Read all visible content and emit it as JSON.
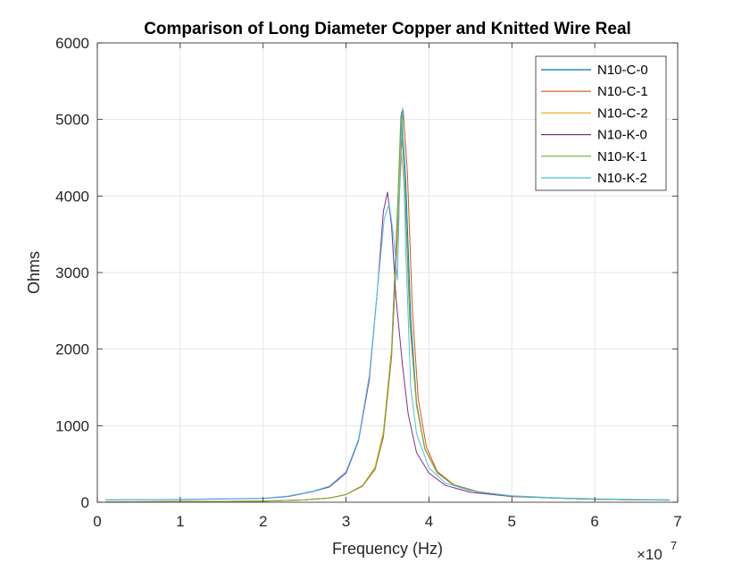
{
  "chart_data": {
    "type": "line",
    "title": "Comparison of Long Diameter Copper and Knitted Wire Real",
    "xlabel": "Frequency (Hz)",
    "ylabel": "Ohms",
    "x_exponent_label": "×10",
    "x_exponent_power": "7",
    "xlim": [
      0,
      7
    ],
    "ylim": [
      0,
      6000
    ],
    "x_ticks": [
      "0",
      "1",
      "2",
      "3",
      "4",
      "5",
      "6",
      "7"
    ],
    "y_ticks": [
      "0",
      "1000",
      "2000",
      "3000",
      "4000",
      "5000",
      "6000"
    ],
    "grid": true,
    "legend_position": "top-right",
    "series": [
      {
        "name": "N10-C-0",
        "color": "#0072BD",
        "x": [
          0.1,
          1,
          2,
          2.5,
          2.8,
          3,
          3.2,
          3.35,
          3.45,
          3.55,
          3.62,
          3.67,
          3.72,
          3.78,
          3.85,
          3.95,
          4.1,
          4.3,
          4.6,
          5,
          5.5,
          6,
          6.5,
          6.9
        ],
        "y": [
          5,
          8,
          15,
          30,
          55,
          100,
          220,
          450,
          900,
          2000,
          3800,
          5100,
          4200,
          2400,
          1300,
          700,
          380,
          220,
          130,
          80,
          55,
          40,
          30,
          28
        ]
      },
      {
        "name": "N10-C-1",
        "color": "#D95319",
        "x": [
          0.1,
          1,
          2,
          2.5,
          2.8,
          3,
          3.2,
          3.35,
          3.45,
          3.55,
          3.63,
          3.69,
          3.74,
          3.8,
          3.87,
          3.97,
          4.1,
          4.3,
          4.6,
          5,
          5.5,
          6,
          6.5,
          6.9
        ],
        "y": [
          5,
          8,
          15,
          30,
          55,
          100,
          210,
          430,
          850,
          1900,
          3700,
          5120,
          4300,
          2500,
          1350,
          720,
          400,
          230,
          135,
          82,
          56,
          41,
          31,
          29
        ]
      },
      {
        "name": "N10-C-2",
        "color": "#EDB120",
        "x": [
          0.1,
          1,
          2,
          2.5,
          2.8,
          3,
          3.2,
          3.35,
          3.45,
          3.55,
          3.62,
          3.66,
          3.71,
          3.77,
          3.85,
          3.95,
          4.1,
          4.3,
          4.6,
          5,
          5.5,
          6,
          6.5,
          6.9
        ],
        "y": [
          5,
          8,
          15,
          30,
          55,
          100,
          220,
          460,
          920,
          2000,
          3600,
          4680,
          4000,
          2300,
          1250,
          690,
          380,
          220,
          130,
          80,
          55,
          40,
          30,
          28
        ]
      },
      {
        "name": "N10-K-0",
        "color": "#7E2F8E",
        "x": [
          0.1,
          1,
          2,
          2.3,
          2.6,
          2.8,
          3,
          3.15,
          3.28,
          3.38,
          3.45,
          3.5,
          3.55,
          3.6,
          3.68,
          3.75,
          3.85,
          4,
          4.2,
          4.5,
          5,
          5.5,
          6,
          6.5,
          6.9
        ],
        "y": [
          30,
          35,
          50,
          75,
          140,
          200,
          380,
          800,
          1600,
          2800,
          3800,
          4050,
          3600,
          2700,
          1800,
          1150,
          650,
          380,
          220,
          130,
          75,
          55,
          40,
          32,
          30
        ]
      },
      {
        "name": "N10-K-1",
        "color": "#77AC30",
        "x": [
          0.1,
          1,
          2,
          2.5,
          2.8,
          3,
          3.2,
          3.35,
          3.45,
          3.55,
          3.62,
          3.66,
          3.71,
          3.77,
          3.85,
          3.95,
          4.1,
          4.3,
          4.6,
          5,
          5.5,
          6,
          6.5,
          6.9
        ],
        "y": [
          5,
          8,
          15,
          30,
          55,
          100,
          215,
          440,
          880,
          1950,
          3750,
          5050,
          4150,
          2350,
          1280,
          700,
          385,
          225,
          132,
          80,
          55,
          40,
          30,
          28
        ]
      },
      {
        "name": "N10-K-2",
        "color": "#4DBEEE",
        "x": [
          0.1,
          1,
          2,
          2.3,
          2.6,
          2.8,
          3,
          3.15,
          3.28,
          3.38,
          3.46,
          3.52,
          3.57,
          3.62,
          3.66,
          3.68,
          3.72,
          3.78,
          3.85,
          4,
          4.2,
          4.5,
          5,
          5.5,
          6,
          6.5,
          6.9
        ],
        "y": [
          32,
          38,
          52,
          80,
          145,
          210,
          400,
          820,
          1650,
          2800,
          3700,
          3900,
          3500,
          2900,
          4700,
          5150,
          3300,
          1500,
          900,
          450,
          250,
          150,
          85,
          60,
          45,
          36,
          33
        ]
      }
    ]
  }
}
